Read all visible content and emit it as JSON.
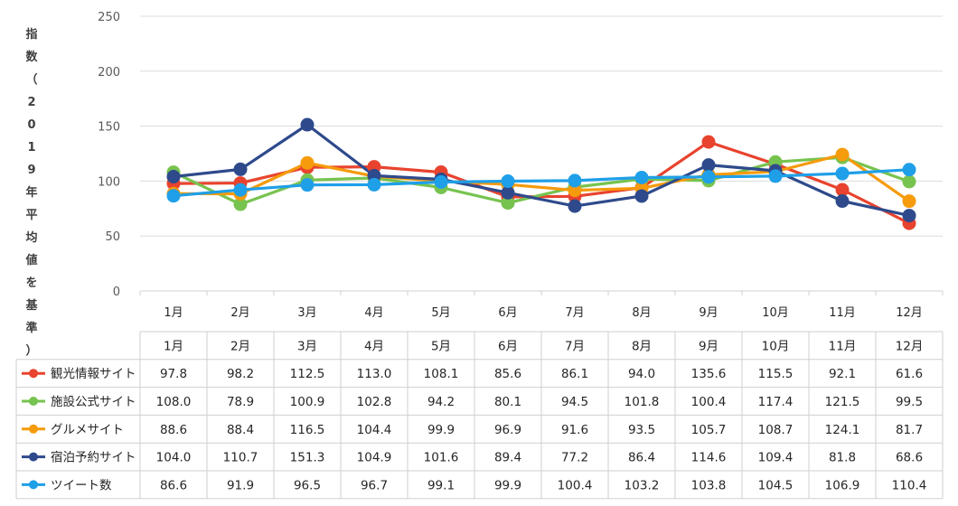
{
  "chart_data": {
    "type": "line",
    "ylabel": "指数（2019年平均値を基準）",
    "ylim": [
      0,
      250
    ],
    "yticks": [
      "0",
      "50",
      "100",
      "150",
      "200",
      "250"
    ],
    "categories": [
      "1月",
      "2月",
      "3月",
      "4月",
      "5月",
      "6月",
      "7月",
      "8月",
      "9月",
      "10月",
      "11月",
      "12月"
    ],
    "grid": true,
    "legend": "data-table",
    "series": [
      {
        "name": "観光情報サイト",
        "color": "#E8432E",
        "values": [
          97.8,
          98.2,
          112.5,
          113.0,
          108.1,
          85.6,
          86.1,
          94.0,
          135.6,
          115.5,
          92.1,
          61.6
        ]
      },
      {
        "name": "施設公式サイト",
        "color": "#77C34F",
        "values": [
          108.0,
          78.9,
          100.9,
          102.8,
          94.2,
          80.1,
          94.5,
          101.8,
          100.4,
          117.4,
          121.5,
          99.5
        ]
      },
      {
        "name": "グルメサイト",
        "color": "#F59B0C",
        "values": [
          88.6,
          88.4,
          116.5,
          104.4,
          99.9,
          96.9,
          91.6,
          93.5,
          105.7,
          108.7,
          124.1,
          81.7
        ]
      },
      {
        "name": "宿泊予約サイト",
        "color": "#2E4A8C",
        "values": [
          104.0,
          110.7,
          151.3,
          104.9,
          101.6,
          89.4,
          77.2,
          86.4,
          114.6,
          109.4,
          81.8,
          68.6
        ]
      },
      {
        "name": "ツイート数",
        "color": "#1F9FE8",
        "values": [
          86.6,
          91.9,
          96.5,
          96.7,
          99.1,
          99.9,
          100.4,
          103.2,
          103.8,
          104.5,
          106.9,
          110.4
        ]
      }
    ]
  }
}
